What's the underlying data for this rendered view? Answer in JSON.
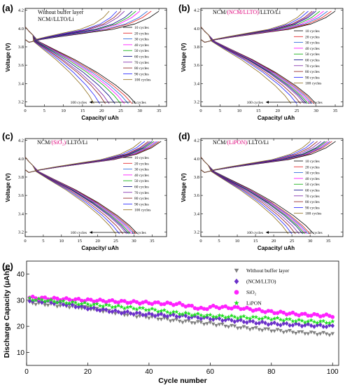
{
  "chart_data": [
    {
      "panel": "(a)",
      "type": "line",
      "sample_parts": [
        {
          "text": "Without buffer layer",
          "color": "#000000"
        },
        {
          "text": "NCM//LLTO/Li",
          "color": "#000000"
        }
      ],
      "xlabel": "Capacity/ uAh",
      "ylabel": "Voltage (V)",
      "xlim": [
        0,
        37
      ],
      "ylim": [
        3.15,
        4.22
      ],
      "xticks": [
        "0",
        "5",
        "10",
        "15",
        "20",
        "25",
        "30",
        "35"
      ],
      "yticks": [
        "3.2",
        "3.4",
        "3.6",
        "3.8",
        "4.0",
        "4.2"
      ],
      "legend": [
        "10 cycles",
        "20 cycles",
        "30 cycles",
        "40 cycles",
        "50 cycles",
        "60 cycles",
        "70 cycles",
        "80 cycles",
        "90 cycles",
        "100 cycles"
      ],
      "annotation": {
        "left": "100 cycles",
        "right": "10 cycles"
      },
      "series": [
        {
          "name": "10 cycles",
          "charge_capacity": 35,
          "discharge_capacity": 29
        },
        {
          "name": "20 cycles",
          "charge_capacity": 33,
          "discharge_capacity": 28
        },
        {
          "name": "30 cycles",
          "charge_capacity": 32,
          "discharge_capacity": 27
        },
        {
          "name": "40 cycles",
          "charge_capacity": 30,
          "discharge_capacity": 26
        },
        {
          "name": "50 cycles",
          "charge_capacity": 29,
          "discharge_capacity": 25
        },
        {
          "name": "60 cycles",
          "charge_capacity": 28,
          "discharge_capacity": 23.5
        },
        {
          "name": "70 cycles",
          "charge_capacity": 26,
          "discharge_capacity": 22
        },
        {
          "name": "80 cycles",
          "charge_capacity": 25,
          "discharge_capacity": 21
        },
        {
          "name": "90 cycles",
          "charge_capacity": 24,
          "discharge_capacity": 19.5
        },
        {
          "name": "100 cycles",
          "charge_capacity": 22,
          "discharge_capacity": 18
        }
      ]
    },
    {
      "panel": "(b)",
      "type": "line",
      "sample_parts": [
        {
          "text": "NCM/",
          "color": "#000000"
        },
        {
          "text": "(NCM/LLTO)",
          "color": "#e0007a"
        },
        {
          "text": "/LLTO/Li",
          "color": "#000000"
        }
      ],
      "xlabel": "Capacity/ uAh",
      "ylabel": "Voltage (V)",
      "xlim": [
        0,
        37
      ],
      "ylim": [
        3.15,
        4.22
      ],
      "xticks": [
        "0",
        "5",
        "10",
        "15",
        "20",
        "25",
        "30",
        "35"
      ],
      "yticks": [
        "3.2",
        "3.4",
        "3.6",
        "3.8",
        "4.0",
        "4.2"
      ],
      "legend": [
        "10 cycles",
        "20 cycles",
        "30 cycles",
        "40 cycles",
        "50 cycles",
        "60 cycles",
        "70 cycles",
        "80 cycles",
        "90 cycles",
        "100 cycles"
      ],
      "annotation": {
        "left": "100 cycles",
        "right": "10 cycles"
      },
      "series": [
        {
          "name": "10 cycles",
          "charge_capacity": 35,
          "discharge_capacity": 30
        },
        {
          "name": "20 cycles",
          "charge_capacity": 34,
          "discharge_capacity": 29.5
        },
        {
          "name": "30 cycles",
          "charge_capacity": 33,
          "discharge_capacity": 29
        },
        {
          "name": "40 cycles",
          "charge_capacity": 32,
          "discharge_capacity": 28.5
        },
        {
          "name": "50 cycles",
          "charge_capacity": 31,
          "discharge_capacity": 28
        },
        {
          "name": "60 cycles",
          "charge_capacity": 30,
          "discharge_capacity": 27.5
        },
        {
          "name": "70 cycles",
          "charge_capacity": 29.5,
          "discharge_capacity": 27
        },
        {
          "name": "80 cycles",
          "charge_capacity": 29,
          "discharge_capacity": 26
        },
        {
          "name": "90 cycles",
          "charge_capacity": 28,
          "discharge_capacity": 25
        },
        {
          "name": "100 cycles",
          "charge_capacity": 27,
          "discharge_capacity": 23.5
        }
      ]
    },
    {
      "panel": "(c)",
      "type": "line",
      "sample_parts": [
        {
          "text": "NCM/",
          "color": "#000000"
        },
        {
          "text": "(SiO₂)",
          "color": "#e0007a"
        },
        {
          "text": "/LLTO/Li",
          "color": "#000000"
        }
      ],
      "xlabel": "Capacity/ uAh",
      "ylabel": "Voltage (V)",
      "xlim": [
        0,
        39
      ],
      "ylim": [
        3.15,
        4.22
      ],
      "xticks": [
        "0",
        "5",
        "10",
        "15",
        "20",
        "25",
        "30",
        "35"
      ],
      "yticks": [
        "3.2",
        "3.4",
        "3.6",
        "3.8",
        "4.0",
        "4.2"
      ],
      "legend": [
        "10 cycles",
        "20 cycles",
        "30 cycles",
        "40 cycles",
        "50 cycles",
        "60 cycles",
        "70 cycles",
        "80 cycles",
        "90 cycles",
        "100 cycles"
      ],
      "annotation": {
        "left": "100 cycles",
        "right": "10 cycles"
      },
      "series": [
        {
          "name": "10 cycles",
          "charge_capacity": 37.5,
          "discharge_capacity": 31
        },
        {
          "name": "20 cycles",
          "charge_capacity": 37,
          "discharge_capacity": 30.5
        },
        {
          "name": "30 cycles",
          "charge_capacity": 36.5,
          "discharge_capacity": 30
        },
        {
          "name": "40 cycles",
          "charge_capacity": 36,
          "discharge_capacity": 29.5
        },
        {
          "name": "50 cycles",
          "charge_capacity": 35.5,
          "discharge_capacity": 29
        },
        {
          "name": "60 cycles",
          "charge_capacity": 35,
          "discharge_capacity": 28.5
        },
        {
          "name": "70 cycles",
          "charge_capacity": 34.5,
          "discharge_capacity": 28
        },
        {
          "name": "80 cycles",
          "charge_capacity": 34,
          "discharge_capacity": 27
        },
        {
          "name": "90 cycles",
          "charge_capacity": 33,
          "discharge_capacity": 26
        },
        {
          "name": "100 cycles",
          "charge_capacity": 32,
          "discharge_capacity": 25
        }
      ]
    },
    {
      "panel": "(d)",
      "type": "line",
      "sample_parts": [
        {
          "text": "NCM/",
          "color": "#000000"
        },
        {
          "text": "(LiPON)",
          "color": "#e0007a"
        },
        {
          "text": "/LLTO/Li",
          "color": "#000000"
        }
      ],
      "xlabel": "Capacity/ uAh",
      "ylabel": "Voltage (V)",
      "xlim": [
        0,
        39
      ],
      "ylim": [
        3.15,
        4.22
      ],
      "xticks": [
        "0",
        "5",
        "10",
        "15",
        "20",
        "25",
        "30",
        "35"
      ],
      "yticks": [
        "3.2",
        "3.4",
        "3.6",
        "3.8",
        "4.0",
        "4.2"
      ],
      "legend": [
        "10 cycles",
        "20 cycles",
        "30 cycles",
        "40 cycles",
        "50 cycles",
        "60 cycles",
        "70 cycles",
        "80 cycles",
        "90 cycles",
        "100 cycles"
      ],
      "annotation": {
        "left": "100 cycles",
        "right": "10 cycles"
      },
      "series": [
        {
          "name": "10 cycles",
          "charge_capacity": 37,
          "discharge_capacity": 31
        },
        {
          "name": "20 cycles",
          "charge_capacity": 36,
          "discharge_capacity": 30
        },
        {
          "name": "30 cycles",
          "charge_capacity": 35.5,
          "discharge_capacity": 29.5
        },
        {
          "name": "40 cycles",
          "charge_capacity": 35,
          "discharge_capacity": 29
        },
        {
          "name": "50 cycles",
          "charge_capacity": 34.5,
          "discharge_capacity": 28.5
        },
        {
          "name": "60 cycles",
          "charge_capacity": 34,
          "discharge_capacity": 28
        },
        {
          "name": "70 cycles",
          "charge_capacity": 33,
          "discharge_capacity": 27
        },
        {
          "name": "80 cycles",
          "charge_capacity": 32,
          "discharge_capacity": 26
        },
        {
          "name": "90 cycles",
          "charge_capacity": 31,
          "discharge_capacity": 25
        },
        {
          "name": "100 cycles",
          "charge_capacity": 30,
          "discharge_capacity": 24
        }
      ]
    },
    {
      "panel": "(e)",
      "type": "scatter",
      "xlabel": "Cycle number",
      "ylabel": "Discharge Capacity (μAh)",
      "xlim": [
        0,
        102
      ],
      "ylim": [
        5,
        45
      ],
      "xticks": [
        0,
        20,
        40,
        60,
        80,
        100
      ],
      "yticks": [
        10,
        20,
        30,
        40
      ],
      "legend_position": "top-right",
      "series": [
        {
          "name": "Without buffer layer",
          "marker": "triangle-down",
          "color": "#808080",
          "points": [
            [
              1,
              29
            ],
            [
              10,
              28
            ],
            [
              20,
              27
            ],
            [
              30,
              25
            ],
            [
              36,
              24
            ],
            [
              40,
              23.5
            ],
            [
              50,
              22
            ],
            [
              60,
              21
            ],
            [
              70,
              19.5
            ],
            [
              80,
              18.5
            ],
            [
              90,
              17.5
            ],
            [
              100,
              17
            ]
          ]
        },
        {
          "name": "(NCM/LLTO)",
          "marker": "diamond",
          "color": "#6a2fc9",
          "points": [
            [
              1,
              30
            ],
            [
              10,
              29
            ],
            [
              20,
              27
            ],
            [
              30,
              25.5
            ],
            [
              40,
              24.5
            ],
            [
              50,
              24
            ],
            [
              60,
              23
            ],
            [
              70,
              22
            ],
            [
              80,
              21
            ],
            [
              90,
              20.5
            ],
            [
              100,
              20
            ]
          ]
        },
        {
          "name": "SiO₂",
          "marker": "circle",
          "color": "#ff22ff",
          "points": [
            [
              1,
              31
            ],
            [
              10,
              30.5
            ],
            [
              20,
              30
            ],
            [
              30,
              29.5
            ],
            [
              40,
              29
            ],
            [
              50,
              28.5
            ],
            [
              58,
              26.5
            ],
            [
              60,
              27.5
            ],
            [
              70,
              27
            ],
            [
              80,
              25.5
            ],
            [
              90,
              24.5
            ],
            [
              100,
              24
            ]
          ]
        },
        {
          "name": "LiPON",
          "marker": "star",
          "color": "#22dd22",
          "points": [
            [
              1,
              30.5
            ],
            [
              10,
              29.5
            ],
            [
              20,
              28.5
            ],
            [
              30,
              27.5
            ],
            [
              40,
              26.5
            ],
            [
              50,
              25
            ],
            [
              60,
              24
            ],
            [
              70,
              23.5
            ],
            [
              80,
              23
            ],
            [
              90,
              22
            ],
            [
              100,
              21.5
            ]
          ]
        }
      ]
    }
  ],
  "cycle_colors": [
    "#000000",
    "#e41a1c",
    "#1f5fd6",
    "#ff00ff",
    "#00aa00",
    "#000080",
    "#7a1fa8",
    "#8b1a1a",
    "#1a1aff",
    "#8b6914"
  ]
}
